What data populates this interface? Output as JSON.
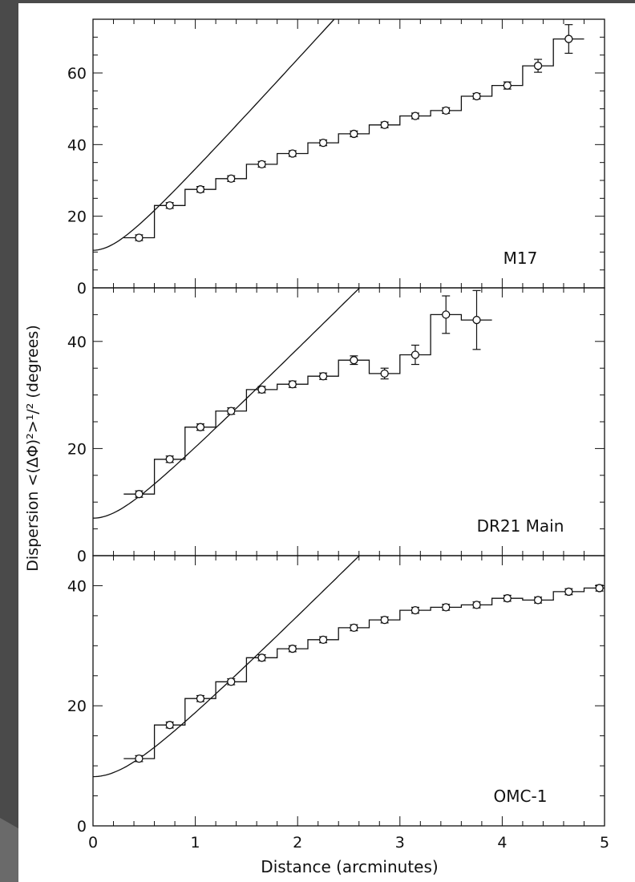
{
  "chart_data": {
    "type": "line",
    "xlabel": "Distance (arcminutes)",
    "ylabel": "Dispersion <(ΔΦ)²>¹/²  (degrees)",
    "xlim": [
      0,
      5
    ],
    "x_ticks": [
      "0",
      "1",
      "2",
      "3",
      "4",
      "5"
    ],
    "panels": [
      {
        "name": "M17",
        "ylim": [
          0,
          75
        ],
        "y_ticks": [
          0,
          20,
          40,
          60
        ],
        "fit_intercept": 10.5,
        "fit_slope": 31.5,
        "points": [
          {
            "x": 0.45,
            "y": 14.0,
            "err": 0.8
          },
          {
            "x": 0.75,
            "y": 23.0,
            "err": 0.8
          },
          {
            "x": 1.05,
            "y": 27.5,
            "err": 0.8
          },
          {
            "x": 1.35,
            "y": 30.5,
            "err": 0.8
          },
          {
            "x": 1.65,
            "y": 34.5,
            "err": 0.8
          },
          {
            "x": 1.95,
            "y": 37.5,
            "err": 0.8
          },
          {
            "x": 2.25,
            "y": 40.5,
            "err": 0.8
          },
          {
            "x": 2.55,
            "y": 43.0,
            "err": 0.8
          },
          {
            "x": 2.85,
            "y": 45.5,
            "err": 0.8
          },
          {
            "x": 3.15,
            "y": 48.0,
            "err": 0.8
          },
          {
            "x": 3.45,
            "y": 49.5,
            "err": 0.8
          },
          {
            "x": 3.75,
            "y": 53.5,
            "err": 0.8
          },
          {
            "x": 4.05,
            "y": 56.5,
            "err": 1.0
          },
          {
            "x": 4.35,
            "y": 62.0,
            "err": 1.8
          },
          {
            "x": 4.65,
            "y": 69.5,
            "err": 4.0
          }
        ]
      },
      {
        "name": "DR21 Main",
        "ylim": [
          0,
          50
        ],
        "y_ticks": [
          0,
          20,
          40
        ],
        "fit_intercept": 7.0,
        "fit_slope": 19.0,
        "points": [
          {
            "x": 0.45,
            "y": 11.5,
            "err": 0.6
          },
          {
            "x": 0.75,
            "y": 18.0,
            "err": 0.6
          },
          {
            "x": 1.05,
            "y": 24.0,
            "err": 0.6
          },
          {
            "x": 1.35,
            "y": 27.0,
            "err": 0.6
          },
          {
            "x": 1.65,
            "y": 31.0,
            "err": 0.6
          },
          {
            "x": 1.95,
            "y": 32.0,
            "err": 0.6
          },
          {
            "x": 2.25,
            "y": 33.5,
            "err": 0.6
          },
          {
            "x": 2.55,
            "y": 36.5,
            "err": 0.8
          },
          {
            "x": 2.85,
            "y": 34.0,
            "err": 1.0
          },
          {
            "x": 3.15,
            "y": 37.5,
            "err": 1.8
          },
          {
            "x": 3.45,
            "y": 45.0,
            "err": 3.5
          },
          {
            "x": 3.75,
            "y": 44.0,
            "err": 5.5
          }
        ]
      },
      {
        "name": "OMC-1",
        "ylim": [
          0,
          45
        ],
        "y_ticks": [
          0,
          20,
          40
        ],
        "fit_intercept": 8.2,
        "fit_slope": 17.0,
        "points": [
          {
            "x": 0.45,
            "y": 11.2,
            "err": 0.5
          },
          {
            "x": 0.75,
            "y": 16.8,
            "err": 0.5
          },
          {
            "x": 1.05,
            "y": 21.2,
            "err": 0.5
          },
          {
            "x": 1.35,
            "y": 24.0,
            "err": 0.5
          },
          {
            "x": 1.65,
            "y": 28.0,
            "err": 0.5
          },
          {
            "x": 1.95,
            "y": 29.5,
            "err": 0.5
          },
          {
            "x": 2.25,
            "y": 31.0,
            "err": 0.5
          },
          {
            "x": 2.55,
            "y": 33.0,
            "err": 0.5
          },
          {
            "x": 2.85,
            "y": 34.3,
            "err": 0.5
          },
          {
            "x": 3.15,
            "y": 35.9,
            "err": 0.5
          },
          {
            "x": 3.45,
            "y": 36.4,
            "err": 0.5
          },
          {
            "x": 3.75,
            "y": 36.8,
            "err": 0.5
          },
          {
            "x": 4.05,
            "y": 37.9,
            "err": 0.5
          },
          {
            "x": 4.35,
            "y": 37.6,
            "err": 0.5
          },
          {
            "x": 4.65,
            "y": 39.0,
            "err": 0.5
          },
          {
            "x": 4.95,
            "y": 39.6,
            "err": 0.5
          }
        ]
      }
    ]
  }
}
